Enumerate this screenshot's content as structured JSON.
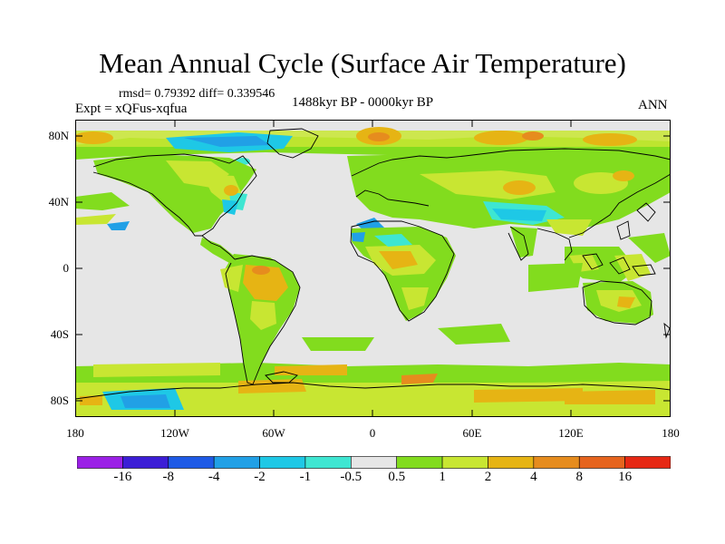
{
  "title": "Mean Annual Cycle (Surface Air Temperature)",
  "stats": "rmsd= 0.79392 diff= 0.339546",
  "period": "1488kyr BP - 0000kyr BP",
  "experiment": "Expt = xQFus-xqfua",
  "season": "ANN",
  "map": {
    "y_labels": [
      "80N",
      "40N",
      "0",
      "40S",
      "80S"
    ],
    "x_labels": [
      "180",
      "120W",
      "60W",
      "0",
      "60E",
      "120E",
      "180"
    ]
  },
  "colorbar": {
    "labels": [
      "-16",
      "-8",
      "-4",
      "-2",
      "-1",
      "-0.5",
      "0.5",
      "1",
      "2",
      "4",
      "8",
      "16"
    ],
    "colors": [
      "#9b20e6",
      "#3c1ed6",
      "#1e5ae6",
      "#21a0e6",
      "#1ec8e6",
      "#3ee6d2",
      "#e6e6e6",
      "#82dc1e",
      "#c8e632",
      "#e6b414",
      "#e68c1e",
      "#e6641e",
      "#e62814"
    ]
  }
}
